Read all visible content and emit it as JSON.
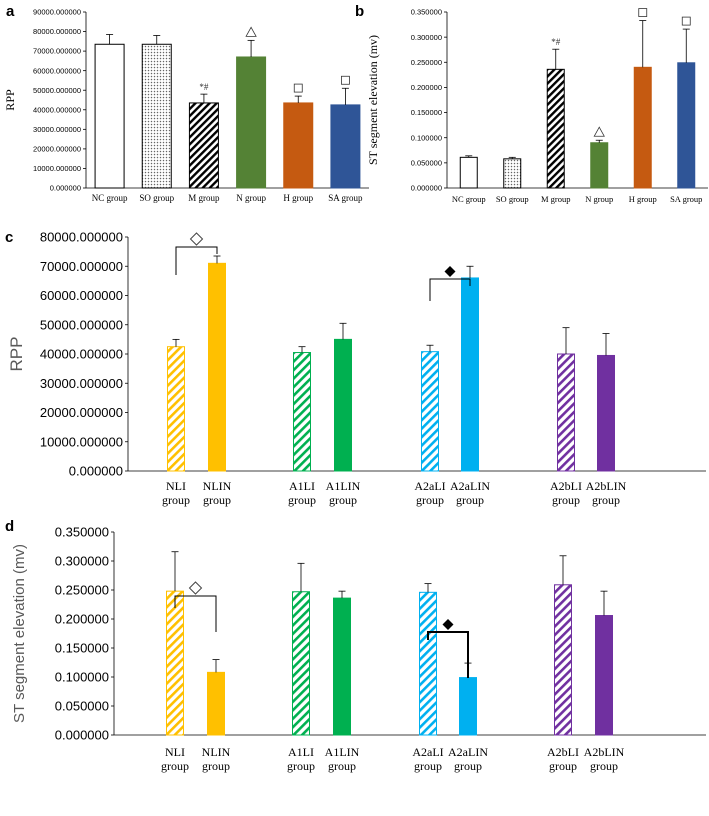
{
  "chart_data": [
    {
      "panel": "a",
      "type": "bar",
      "title": "",
      "xlabel": "",
      "ylabel": "RPP",
      "ylim": [
        0,
        90000
      ],
      "yticks": [
        0,
        10000,
        20000,
        30000,
        40000,
        50000,
        60000,
        70000,
        80000,
        90000
      ],
      "categories": [
        "NC group",
        "SO group",
        "M group",
        "N group",
        "H group",
        "SA group"
      ],
      "values": [
        73500,
        73500,
        43500,
        67000,
        43500,
        42500
      ],
      "errors": [
        5000,
        4500,
        4500,
        8500,
        3500,
        8500
      ],
      "fills": [
        "#ffffff",
        "dots",
        "hatch-black",
        "#548235",
        "#c55a11",
        "#2f5597"
      ],
      "annotations": [
        "",
        "",
        "*#",
        "△",
        "□",
        "□"
      ],
      "grid": false
    },
    {
      "panel": "b",
      "type": "bar",
      "title": "",
      "xlabel": "",
      "ylabel": "ST segment elevation (mv)",
      "ylim": [
        0,
        0.35
      ],
      "yticks": [
        0,
        0.05,
        0.1,
        0.15,
        0.2,
        0.25,
        0.3,
        0.35
      ],
      "categories": [
        "NC group",
        "SO group",
        "M group",
        "N group",
        "H group",
        "SA group"
      ],
      "values": [
        0.061,
        0.058,
        0.236,
        0.09,
        0.24,
        0.249
      ],
      "errors": [
        0.003,
        0.003,
        0.04,
        0.005,
        0.093,
        0.067
      ],
      "fills": [
        "#ffffff",
        "dots",
        "hatch-black",
        "#548235",
        "#c55a11",
        "#2f5597"
      ],
      "annotations": [
        "",
        "",
        "*#",
        "△",
        "□",
        "□"
      ],
      "grid": false
    },
    {
      "panel": "c",
      "type": "bar",
      "title": "",
      "xlabel": "",
      "ylabel": "RPP",
      "ylim": [
        0,
        80000
      ],
      "yticks": [
        0,
        10000,
        20000,
        30000,
        40000,
        50000,
        60000,
        70000,
        80000
      ],
      "categories": [
        "NLI group",
        "NLIN group",
        "A1LI group",
        "A1LIN group",
        "A2aLI group",
        "A2aLIN group",
        "A2bLI group",
        "A2bLIN group"
      ],
      "values": [
        42500,
        71000,
        40500,
        45000,
        40800,
        66000,
        40000,
        39500
      ],
      "errors": [
        2500,
        2500,
        2000,
        5500,
        2200,
        4000,
        9000,
        7500
      ],
      "colors": [
        "#ffc000",
        "#ffc000",
        "#00b050",
        "#00b050",
        "#00b0f0",
        "#00b0f0",
        "#7030a0",
        "#7030a0"
      ],
      "hatched": [
        true,
        false,
        true,
        false,
        true,
        false,
        true,
        false
      ],
      "brackets": [
        {
          "from": 0,
          "to": 1,
          "symbol": "◇"
        },
        {
          "from": 4,
          "to": 5,
          "symbol": "◆"
        }
      ],
      "grid": false
    },
    {
      "panel": "d",
      "type": "bar",
      "title": "",
      "xlabel": "",
      "ylabel": "ST segment elevation (mv)",
      "ylim": [
        0,
        0.35
      ],
      "yticks": [
        0,
        0.05,
        0.1,
        0.15,
        0.2,
        0.25,
        0.3,
        0.35
      ],
      "categories": [
        "NLI group",
        "NLIN group",
        "A1LI group",
        "A1LIN group",
        "A2aLI group",
        "A2aLIN group",
        "A2bLI group",
        "A2bLIN group"
      ],
      "values": [
        0.248,
        0.108,
        0.247,
        0.236,
        0.246,
        0.099,
        0.259,
        0.206
      ],
      "errors": [
        0.068,
        0.022,
        0.049,
        0.012,
        0.015,
        0.025,
        0.05,
        0.042
      ],
      "colors": [
        "#ffc000",
        "#ffc000",
        "#00b050",
        "#00b050",
        "#00b0f0",
        "#00b0f0",
        "#7030a0",
        "#7030a0"
      ],
      "hatched": [
        true,
        false,
        true,
        false,
        true,
        false,
        true,
        false
      ],
      "brackets": [
        {
          "from": 0,
          "to": 1,
          "symbol": "◇"
        },
        {
          "from": 4,
          "to": 5,
          "symbol": "◆"
        }
      ],
      "grid": false
    }
  ]
}
